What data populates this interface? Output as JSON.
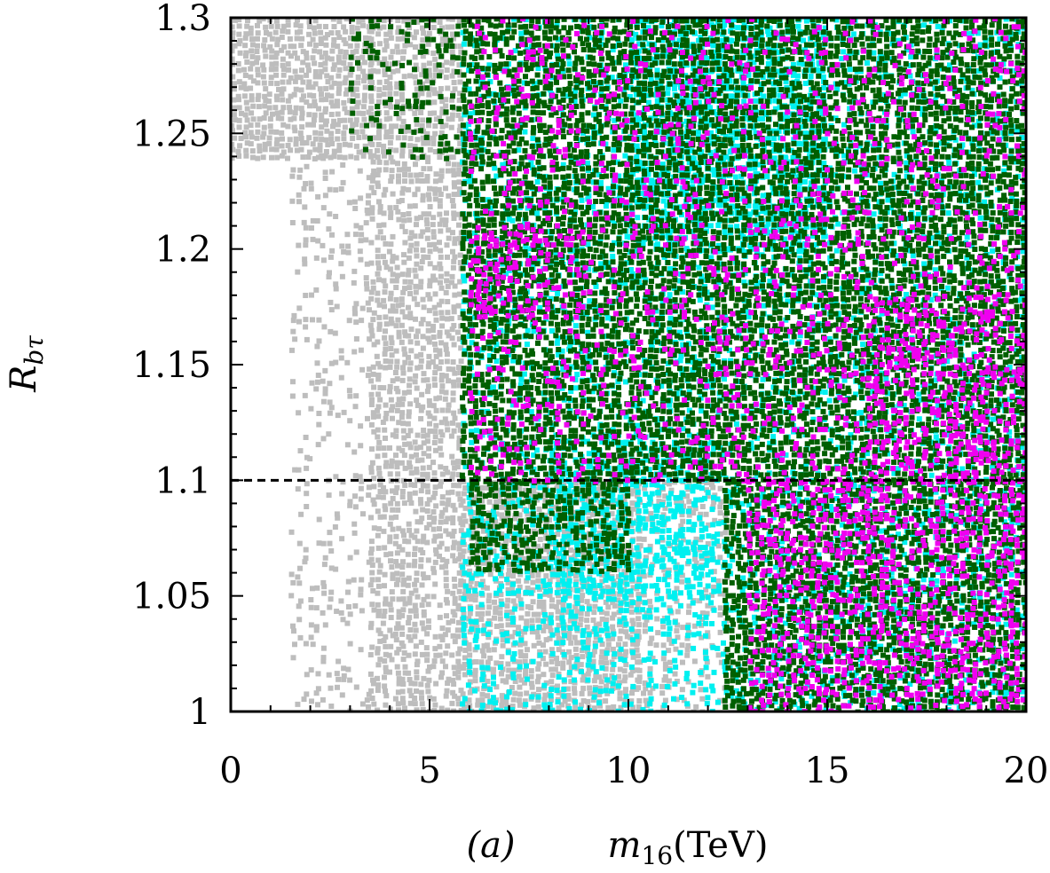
{
  "chart_data": {
    "type": "scatter",
    "title": "",
    "panel_label": "(a)",
    "xlabel": "m16(TeV)",
    "xlabel_parts": {
      "symbol": "m",
      "subscript": "16",
      "unit": "(TeV)"
    },
    "ylabel": "Rbτ",
    "ylabel_parts": {
      "symbol": "R",
      "subscript": "bτ"
    },
    "xlim": [
      0,
      20
    ],
    "ylim": [
      1.0,
      1.3
    ],
    "x_ticks": [
      "0",
      "5",
      "10",
      "15",
      "20"
    ],
    "y_ticks": [
      "1",
      "1.05",
      "1.1",
      "1.15",
      "1.2",
      "1.25",
      "1.3"
    ],
    "grid": false,
    "reference_line": {
      "y": 1.1,
      "style": "dashed",
      "color": "#000000"
    },
    "series": [
      {
        "color": "#bdbdbd",
        "description": "gray points (background layer)",
        "regions": [
          {
            "x": [
              0,
              3.5
            ],
            "y": [
              1.24,
              1.3
            ],
            "density": 0.95
          },
          {
            "x": [
              3.5,
              5.8
            ],
            "y": [
              1.0,
              1.3
            ],
            "density": 0.8
          },
          {
            "x": [
              1.5,
              3.5
            ],
            "y": [
              1.0,
              1.24
            ],
            "density": 0.25
          },
          {
            "x": [
              5.8,
              10.2
            ],
            "y": [
              1.0,
              1.1
            ],
            "density": 0.9
          },
          {
            "x": [
              10.2,
              12.4
            ],
            "y": [
              1.0,
              1.1
            ],
            "density": 0.45
          }
        ]
      },
      {
        "color": "#00f0f0",
        "description": "cyan points",
        "regions": [
          {
            "x": [
              5.8,
              20
            ],
            "y": [
              1.0,
              1.3
            ],
            "density": 0.35
          },
          {
            "x": [
              10,
              15
            ],
            "y": [
              1.2,
              1.3
            ],
            "density": 0.7
          },
          {
            "x": [
              8,
              12
            ],
            "y": [
              1.05,
              1.12
            ],
            "density": 0.55
          }
        ]
      },
      {
        "color": "#005f00",
        "description": "dark green points",
        "regions": [
          {
            "x": [
              5.8,
              20
            ],
            "y": [
              1.1,
              1.3
            ],
            "density": 0.85
          },
          {
            "x": [
              6,
              10
            ],
            "y": [
              1.06,
              1.1
            ],
            "density": 0.7
          },
          {
            "x": [
              12.4,
              20
            ],
            "y": [
              1.0,
              1.1
            ],
            "density": 0.85
          },
          {
            "x": [
              3.0,
              5.8
            ],
            "y": [
              1.24,
              1.3
            ],
            "density": 0.25
          }
        ]
      },
      {
        "color": "#f000f0",
        "description": "magenta points",
        "regions": [
          {
            "x": [
              6,
              20
            ],
            "y": [
              1.1,
              1.3
            ],
            "density": 0.18
          },
          {
            "x": [
              13,
              20
            ],
            "y": [
              1.0,
              1.1
            ],
            "density": 0.45
          },
          {
            "x": [
              16,
              20
            ],
            "y": [
              1.1,
              1.18
            ],
            "density": 0.35
          },
          {
            "x": [
              6,
              8
            ],
            "y": [
              1.17,
              1.21
            ],
            "density": 0.35
          }
        ]
      }
    ]
  }
}
